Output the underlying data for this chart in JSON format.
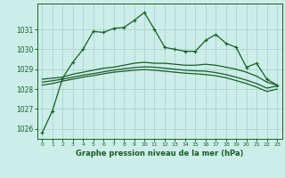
{
  "title": "Graphe pression niveau de la mer (hPa)",
  "bg_color": "#cceee8",
  "line_color": "#1a5c2a",
  "grid_color": "#aad4cc",
  "x_values": [
    0,
    1,
    2,
    3,
    4,
    5,
    6,
    7,
    8,
    9,
    10,
    11,
    12,
    13,
    14,
    15,
    16,
    17,
    18,
    19,
    20,
    21,
    22,
    23
  ],
  "line1": [
    1025.8,
    1026.9,
    1028.55,
    1029.35,
    1030.0,
    1030.9,
    1030.85,
    1031.05,
    1031.1,
    1031.45,
    1031.85,
    1031.0,
    1030.1,
    1030.0,
    1029.9,
    1029.9,
    1030.45,
    1030.75,
    1030.3,
    1030.1,
    1029.1,
    1029.3,
    1028.5,
    1028.2
  ],
  "line2": [
    1028.5,
    1028.55,
    1028.6,
    1028.75,
    1028.85,
    1028.95,
    1029.05,
    1029.1,
    1029.2,
    1029.3,
    1029.35,
    1029.3,
    1029.3,
    1029.25,
    1029.2,
    1029.2,
    1029.25,
    1029.2,
    1029.1,
    1029.0,
    1028.85,
    1028.65,
    1028.35,
    1028.2
  ],
  "line3": [
    1028.35,
    1028.42,
    1028.5,
    1028.6,
    1028.7,
    1028.78,
    1028.87,
    1028.95,
    1029.02,
    1029.08,
    1029.12,
    1029.1,
    1029.05,
    1029.0,
    1028.95,
    1028.92,
    1028.9,
    1028.83,
    1028.73,
    1028.6,
    1028.45,
    1028.28,
    1028.05,
    1028.15
  ],
  "line4": [
    1028.2,
    1028.28,
    1028.4,
    1028.5,
    1028.6,
    1028.68,
    1028.77,
    1028.85,
    1028.9,
    1028.95,
    1028.98,
    1028.95,
    1028.9,
    1028.85,
    1028.8,
    1028.77,
    1028.73,
    1028.67,
    1028.57,
    1028.43,
    1028.28,
    1028.1,
    1027.88,
    1028.0
  ],
  "ylim_min": 1025.5,
  "ylim_max": 1032.3,
  "yticks": [
    1026,
    1027,
    1028,
    1029,
    1030,
    1031
  ],
  "xticks": [
    0,
    1,
    2,
    3,
    4,
    5,
    6,
    7,
    8,
    9,
    10,
    11,
    12,
    13,
    14,
    15,
    16,
    17,
    18,
    19,
    20,
    21,
    22,
    23
  ]
}
